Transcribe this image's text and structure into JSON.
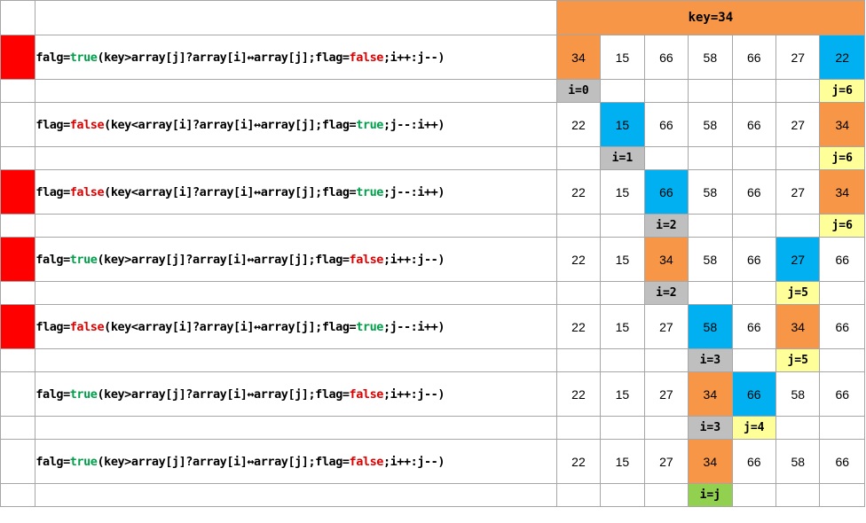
{
  "colors": {
    "key": "#f79646",
    "swap": "#00b0f0",
    "i_index": "#bfbfbf",
    "j_index": "#ffff99",
    "meet": "#92d050",
    "flag_marker": "#ff0000",
    "true_text": "#00a04a",
    "false_text": "#e00000"
  },
  "header": {
    "key_label": "key=34"
  },
  "rows": [
    {
      "flag_marker": true,
      "expr": [
        {
          "t": "falg=",
          "c": "plain"
        },
        {
          "t": "true",
          "c": "green"
        },
        {
          "t": "(key>array[j]?array[i]↔array[j];flag=",
          "c": "plain"
        },
        {
          "t": "false",
          "c": "red"
        },
        {
          "t": ";i++:j--)",
          "c": "plain"
        }
      ],
      "values": [
        "34",
        "15",
        "66",
        "58",
        "66",
        "27",
        "22"
      ],
      "highlights": {
        "0": "key",
        "6": "swap"
      },
      "indices": [
        {
          "col": 0,
          "text": "i=0",
          "kind": "i_index"
        },
        {
          "col": 6,
          "text": "j=6",
          "kind": "j_index"
        }
      ]
    },
    {
      "flag_marker": false,
      "expr": [
        {
          "t": "flag=",
          "c": "plain"
        },
        {
          "t": "false",
          "c": "red"
        },
        {
          "t": "(key<array[i]?array[i]↔array[j];flag=",
          "c": "plain"
        },
        {
          "t": "true",
          "c": "green"
        },
        {
          "t": ";j--:i++)",
          "c": "plain"
        }
      ],
      "values": [
        "22",
        "15",
        "66",
        "58",
        "66",
        "27",
        "34"
      ],
      "highlights": {
        "1": "swap",
        "6": "key"
      },
      "indices": [
        {
          "col": 1,
          "text": "i=1",
          "kind": "i_index"
        },
        {
          "col": 6,
          "text": "j=6",
          "kind": "j_index"
        }
      ]
    },
    {
      "flag_marker": true,
      "expr": [
        {
          "t": "flag=",
          "c": "plain"
        },
        {
          "t": "false",
          "c": "red"
        },
        {
          "t": "(key<array[i]?array[i]↔array[j];flag=",
          "c": "plain"
        },
        {
          "t": "true",
          "c": "green"
        },
        {
          "t": ";j--:i++)",
          "c": "plain"
        }
      ],
      "values": [
        "22",
        "15",
        "66",
        "58",
        "66",
        "27",
        "34"
      ],
      "highlights": {
        "2": "swap",
        "6": "key"
      },
      "indices": [
        {
          "col": 2,
          "text": "i=2",
          "kind": "i_index"
        },
        {
          "col": 6,
          "text": "j=6",
          "kind": "j_index"
        }
      ]
    },
    {
      "flag_marker": true,
      "expr": [
        {
          "t": "falg=",
          "c": "plain"
        },
        {
          "t": "true",
          "c": "green"
        },
        {
          "t": "(key>array[j]?array[i]↔array[j];flag=",
          "c": "plain"
        },
        {
          "t": "false",
          "c": "red"
        },
        {
          "t": ";i++:j--)",
          "c": "plain"
        }
      ],
      "values": [
        "22",
        "15",
        "34",
        "58",
        "66",
        "27",
        "66"
      ],
      "highlights": {
        "2": "key",
        "5": "swap"
      },
      "indices": [
        {
          "col": 2,
          "text": "i=2",
          "kind": "i_index"
        },
        {
          "col": 5,
          "text": "j=5",
          "kind": "j_index"
        }
      ]
    },
    {
      "flag_marker": true,
      "expr": [
        {
          "t": "flag=",
          "c": "plain"
        },
        {
          "t": "false",
          "c": "red"
        },
        {
          "t": "(key<array[i]?array[i]↔array[j];flag=",
          "c": "plain"
        },
        {
          "t": "true",
          "c": "green"
        },
        {
          "t": ";j--:i++)",
          "c": "plain"
        }
      ],
      "values": [
        "22",
        "15",
        "27",
        "58",
        "66",
        "34",
        "66"
      ],
      "highlights": {
        "3": "swap",
        "5": "key"
      },
      "indices": [
        {
          "col": 3,
          "text": "i=3",
          "kind": "i_index"
        },
        {
          "col": 5,
          "text": "j=5",
          "kind": "j_index"
        }
      ]
    },
    {
      "flag_marker": false,
      "expr": [
        {
          "t": "falg=",
          "c": "plain"
        },
        {
          "t": "true",
          "c": "green"
        },
        {
          "t": "(key>array[j]?array[i]↔array[j];flag=",
          "c": "plain"
        },
        {
          "t": "false",
          "c": "red"
        },
        {
          "t": ";i++:j--)",
          "c": "plain"
        }
      ],
      "values": [
        "22",
        "15",
        "27",
        "34",
        "66",
        "58",
        "66"
      ],
      "highlights": {
        "3": "key",
        "4": "swap"
      },
      "indices": [
        {
          "col": 3,
          "text": "i=3",
          "kind": "i_index"
        },
        {
          "col": 4,
          "text": "j=4",
          "kind": "j_index"
        }
      ]
    },
    {
      "flag_marker": false,
      "expr": [
        {
          "t": "falg=",
          "c": "plain"
        },
        {
          "t": "true",
          "c": "green"
        },
        {
          "t": "(key>array[j]?array[i]↔array[j];flag=",
          "c": "plain"
        },
        {
          "t": "false",
          "c": "red"
        },
        {
          "t": ";i++:j--)",
          "c": "plain"
        }
      ],
      "values": [
        "22",
        "15",
        "27",
        "34",
        "66",
        "58",
        "66"
      ],
      "highlights": {
        "3": "key"
      },
      "indices": [
        {
          "col": 3,
          "text": "i=j",
          "kind": "meet"
        }
      ]
    }
  ]
}
